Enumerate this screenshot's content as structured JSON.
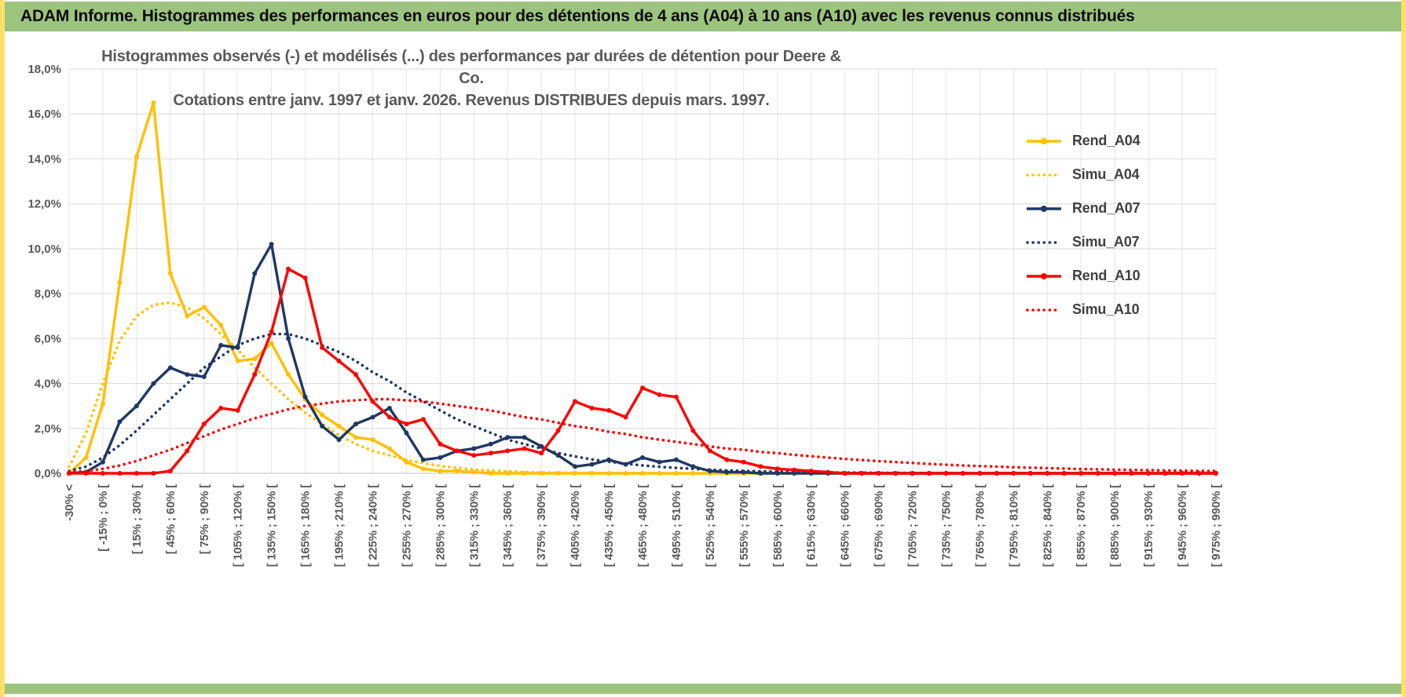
{
  "header": {
    "title": "ADAM Informe. Histogrammes des performances en euros pour des détentions de 4 ans (A04) à 10 ans (A10) avec les revenus connus distribués"
  },
  "chart": {
    "title_line1": "Histogrammes observés (-) et modélisés (...) des performances par durées de détention pour Deere & Co.",
    "title_line2": "Cotations entre janv. 1997 et janv. 2026. Revenus DISTRIBUES depuis mars. 1997."
  },
  "colors": {
    "gold": "#FFC000",
    "navy": "#1F3864",
    "red": "#FF0000",
    "grid": "#D9D9D9",
    "grid_vertical": "#E4E4E4",
    "axis_line": "#BFBFBF",
    "axis_text": "#595959",
    "header_green": "#9CC47E",
    "frame_yellow": "#FFE06A",
    "legend_text": "#404040"
  },
  "chart_data": {
    "type": "line",
    "title": "Histogrammes observés (-) et modélisés (...) des performances par durées de détention pour Deere & Co. Cotations entre janv. 1997 et janv. 2026. Revenus DISTRIBUES depuis mars. 1997.",
    "grid": true,
    "legend_position": "right-top",
    "y_axis": {
      "min": 0,
      "max": 18,
      "step": 2,
      "ticks": [
        "0,0%",
        "2,0%",
        "4,0%",
        "6,0%",
        "8,0%",
        "10,0%",
        "12,0%",
        "14,0%",
        "16,0%",
        "18,0%"
      ]
    },
    "x_axis": {
      "n_points": 69,
      "bins_per_label": 2,
      "bin_width_pct": 15,
      "visible_labels": [
        "-30% <",
        "[ -15% ; 0% [",
        "[ 15% ; 30% [",
        "[ 45% ; 60% [",
        "[ 75% ; 90% [",
        "[ 105% ; 120% [",
        "[ 135% ; 150% [",
        "[ 165% ; 180% [",
        "[ 195% ; 210% [",
        "[ 225% ; 240% [",
        "[ 255% ; 270% [",
        "[ 285% ; 300% [",
        "[ 315% ; 330% [",
        "[ 345% ; 360% [",
        "[ 375% ; 390% [",
        "[ 405% ; 420% [",
        "[ 435% ; 450% [",
        "[ 465% ; 480% [",
        "[ 495% ; 510% [",
        "[ 525% ; 540% [",
        "[ 555% ; 570% [",
        "[ 585% ; 600% [",
        "[ 615% ; 630% [",
        "[ 645% ; 660% [",
        "[ 675% ; 690% [",
        "[ 705% ; 720% [",
        "[ 735% ; 750% [",
        "[ 765% ; 780% [",
        "[ 795% ; 810% [",
        "[ 825% ; 840% [",
        "[ 855% ; 870% [",
        "[ 885% ; 900% [",
        "[ 915% ; 930% [",
        "[ 945% ; 960% [",
        "[ 975% ; 990% ["
      ]
    },
    "series": [
      {
        "name": "Rend_A04",
        "color": "#FFC000",
        "style": "solid",
        "values": [
          0,
          0.7,
          3.1,
          8.5,
          14.1,
          16.5,
          8.9,
          7.0,
          7.4,
          6.6,
          5.0,
          5.1,
          5.8,
          4.4,
          3.3,
          2.6,
          2.1,
          1.6,
          1.5,
          1.1,
          0.5,
          0.2,
          0.1,
          0.1,
          0.05,
          0,
          0,
          0,
          0,
          0,
          0,
          0,
          0,
          0,
          0,
          0,
          0,
          0,
          0,
          0,
          0,
          0,
          0,
          0,
          0,
          0,
          0,
          0,
          0,
          0,
          0,
          0,
          0,
          0,
          0,
          0,
          0,
          0,
          0,
          0,
          0,
          0,
          0,
          0,
          0,
          0,
          0,
          0,
          0
        ]
      },
      {
        "name": "Simu_A04",
        "color": "#FFC000",
        "style": "dotted",
        "values": [
          0.3,
          1.8,
          4.0,
          5.9,
          7.0,
          7.5,
          7.6,
          7.4,
          6.9,
          6.2,
          5.5,
          4.7,
          4.0,
          3.3,
          2.7,
          2.2,
          1.7,
          1.3,
          1.0,
          0.8,
          0.6,
          0.45,
          0.33,
          0.24,
          0.17,
          0.12,
          0.09,
          0.06,
          0.04,
          0.03,
          0.02,
          0.02,
          0.01,
          0.01,
          0.01,
          0,
          0,
          0,
          0,
          0,
          0,
          0,
          0,
          0,
          0,
          0,
          0,
          0,
          0,
          0,
          0,
          0,
          0,
          0,
          0,
          0,
          0,
          0,
          0,
          0,
          0,
          0,
          0,
          0,
          0,
          0,
          0,
          0,
          0
        ]
      },
      {
        "name": "Rend_A07",
        "color": "#1F3864",
        "style": "solid",
        "values": [
          0,
          0.05,
          0.5,
          2.3,
          3.0,
          4.0,
          4.7,
          4.4,
          4.3,
          5.7,
          5.6,
          8.9,
          10.2,
          6.0,
          3.4,
          2.1,
          1.5,
          2.2,
          2.5,
          2.9,
          1.8,
          0.6,
          0.7,
          1.0,
          1.1,
          1.3,
          1.6,
          1.6,
          1.2,
          0.8,
          0.3,
          0.4,
          0.6,
          0.4,
          0.7,
          0.5,
          0.6,
          0.3,
          0.1,
          0.05,
          0.05,
          0,
          0,
          0,
          0,
          0,
          0,
          0,
          0,
          0,
          0,
          0,
          0,
          0,
          0,
          0,
          0,
          0,
          0,
          0,
          0,
          0,
          0,
          0,
          0,
          0,
          0,
          0,
          0
        ]
      },
      {
        "name": "Simu_A07",
        "color": "#1F3864",
        "style": "dotted",
        "values": [
          0.1,
          0.3,
          0.7,
          1.25,
          1.9,
          2.6,
          3.3,
          4.0,
          4.7,
          5.2,
          5.7,
          6.0,
          6.2,
          6.2,
          6.0,
          5.7,
          5.4,
          5.0,
          4.5,
          4.1,
          3.6,
          3.2,
          2.8,
          2.4,
          2.1,
          1.8,
          1.5,
          1.3,
          1.1,
          0.9,
          0.75,
          0.62,
          0.52,
          0.43,
          0.35,
          0.29,
          0.24,
          0.2,
          0.16,
          0.13,
          0.11,
          0.09,
          0.07,
          0.06,
          0.05,
          0.04,
          0.03,
          0.03,
          0.02,
          0.02,
          0.01,
          0.01,
          0.01,
          0,
          0,
          0,
          0,
          0,
          0,
          0,
          0,
          0,
          0,
          0,
          0,
          0,
          0,
          0,
          0
        ]
      },
      {
        "name": "Rend_A10",
        "color": "#FF0000",
        "style": "solid",
        "values": [
          0,
          0,
          0,
          0,
          0,
          0,
          0.1,
          1.0,
          2.2,
          2.9,
          2.8,
          4.4,
          6.3,
          9.1,
          8.7,
          5.6,
          5.0,
          4.4,
          3.2,
          2.5,
          2.2,
          2.4,
          1.3,
          1.0,
          0.8,
          0.9,
          1.0,
          1.1,
          0.9,
          1.9,
          3.2,
          2.9,
          2.8,
          2.5,
          3.8,
          3.5,
          3.4,
          1.9,
          1.0,
          0.6,
          0.5,
          0.3,
          0.2,
          0.15,
          0.1,
          0.05,
          0,
          0,
          0,
          0,
          0,
          0,
          0,
          0,
          0,
          0,
          0,
          0,
          0,
          0,
          0,
          0,
          0,
          0,
          0,
          0,
          0,
          0,
          0
        ]
      },
      {
        "name": "Simu_A10",
        "color": "#FF0000",
        "style": "dotted",
        "values": [
          0.05,
          0.1,
          0.2,
          0.35,
          0.55,
          0.8,
          1.05,
          1.35,
          1.65,
          1.95,
          2.2,
          2.45,
          2.65,
          2.85,
          3.0,
          3.1,
          3.2,
          3.25,
          3.3,
          3.3,
          3.25,
          3.2,
          3.1,
          3.0,
          2.9,
          2.8,
          2.65,
          2.5,
          2.4,
          2.25,
          2.1,
          2.0,
          1.85,
          1.75,
          1.6,
          1.5,
          1.4,
          1.3,
          1.2,
          1.1,
          1.05,
          0.95,
          0.9,
          0.82,
          0.76,
          0.7,
          0.64,
          0.59,
          0.54,
          0.5,
          0.46,
          0.42,
          0.38,
          0.35,
          0.32,
          0.3,
          0.27,
          0.25,
          0.23,
          0.21,
          0.19,
          0.18,
          0.16,
          0.15,
          0.14,
          0.13,
          0.12,
          0.11,
          0.1
        ]
      }
    ]
  }
}
